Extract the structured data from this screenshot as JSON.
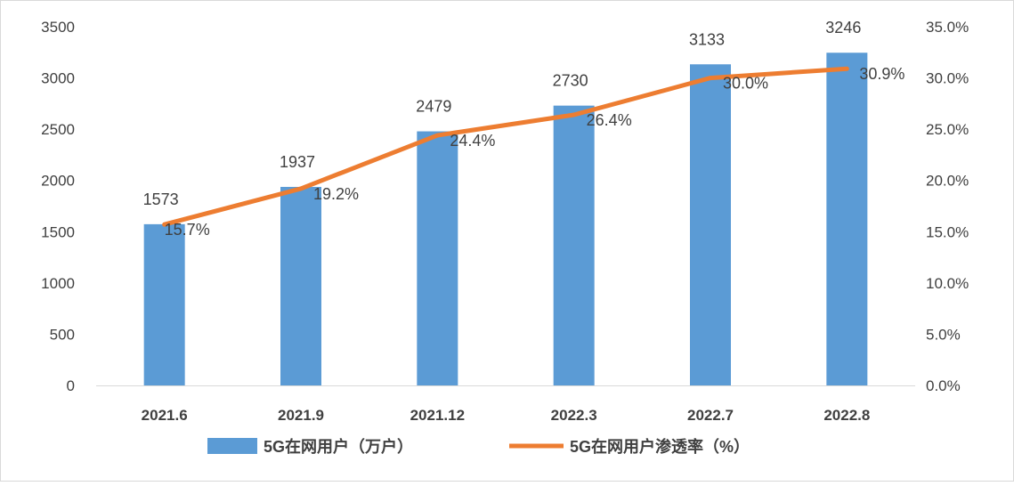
{
  "chart_data": {
    "type": "bar+line",
    "categories": [
      "2021.6",
      "2021.9",
      "2021.12",
      "2022.3",
      "2022.7",
      "2022.8"
    ],
    "series": [
      {
        "name": "5G在网用户（万户）",
        "type": "bar",
        "axis": "left",
        "values": [
          1573,
          1937,
          2479,
          2730,
          3133,
          3246
        ],
        "labels": [
          "1573",
          "1937",
          "2479",
          "2730",
          "3133",
          "3246"
        ],
        "color": "#5B9BD5"
      },
      {
        "name": "5G在网用户渗透率（%）",
        "type": "line",
        "axis": "right",
        "values": [
          15.7,
          19.2,
          24.4,
          26.4,
          30.0,
          30.9
        ],
        "labels": [
          "15.7%",
          "19.2%",
          "24.4%",
          "26.4%",
          "30.0%",
          "30.9%"
        ],
        "color": "#ED7D31"
      }
    ],
    "y_left": {
      "ylim": [
        0,
        3500
      ],
      "ticks": [
        "0",
        "500",
        "1000",
        "1500",
        "2000",
        "2500",
        "3000",
        "3500"
      ]
    },
    "y_right": {
      "ylim": [
        0,
        35
      ],
      "ticks": [
        "0.0%",
        "5.0%",
        "10.0%",
        "15.0%",
        "20.0%",
        "25.0%",
        "30.0%",
        "35.0%"
      ]
    },
    "grid": false,
    "legend": "bottom"
  }
}
